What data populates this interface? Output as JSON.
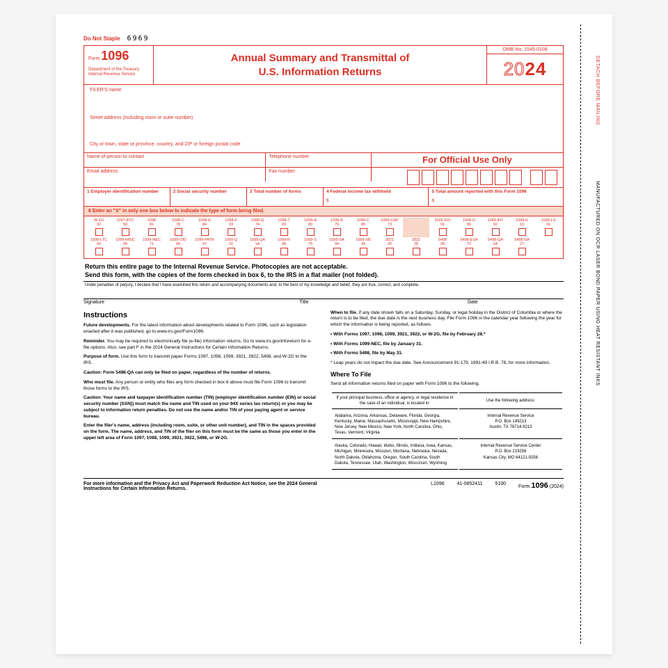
{
  "colors": {
    "red": "#d93025",
    "shade": "#f8d7c8",
    "black": "#000000",
    "page_bg": "#ffffff"
  },
  "top": {
    "nostaple": "Do Not Staple",
    "code": "6969"
  },
  "sidebar": {
    "detach": "DETACH BEFORE MAILING",
    "mfg": "MANUFACTURED ON OCR LASER BOND PAPER USING HEAT RESISTANT INKS"
  },
  "header": {
    "form_word": "Form",
    "form_num": "1096",
    "dept": "Department of the Treasury\nInternal Revenue Service",
    "title": "Annual Summary and Transmittal of\nU.S. Information Returns",
    "omb": "OMB No. 1545-0108",
    "year_outline": "20",
    "year_solid": "24"
  },
  "filer": {
    "name": "FILER'S name",
    "street": "Street address (including room or suite number)",
    "city": "City or town, state or province, country, and ZIP or foreign postal code"
  },
  "contact": {
    "person": "Name of person to contact",
    "phone": "Telephone number",
    "email": "Email address",
    "fax": "Fax number",
    "official": "For Official Use Only"
  },
  "row3": {
    "c1": "1 Employer identification number",
    "c2": "2 Social security number",
    "c3": "3 Total number of forms",
    "c4": "4 Federal income tax withheld",
    "c5": "5 Total amount reported with this Form 1096",
    "dollar": "$"
  },
  "box6": "6 Enter an \"X\" in only one box below to indicate the type of form being filed.",
  "checks": [
    {
      "t": "W-2G",
      "n": "32"
    },
    {
      "t": "1097-BTC",
      "n": "50"
    },
    {
      "t": "1098",
      "n": "81"
    },
    {
      "t": "1098-C",
      "n": "78"
    },
    {
      "t": "1098-E",
      "n": "84"
    },
    {
      "t": "1098-F",
      "n": "03"
    },
    {
      "t": "1098-Q",
      "n": "74"
    },
    {
      "t": "1098-T",
      "n": "83"
    },
    {
      "t": "1099-A",
      "n": "80"
    },
    {
      "t": "1099-B",
      "n": "79"
    },
    {
      "t": "1099-C",
      "n": "85"
    },
    {
      "t": "1099-CAP",
      "n": "73"
    },
    {
      "t": "",
      "n": "",
      "shade": true
    },
    {
      "t": "1099-DIV",
      "n": "91"
    },
    {
      "t": "1099-G",
      "n": "86"
    },
    {
      "t": "1099-INT",
      "n": "92"
    },
    {
      "t": "1099-K",
      "n": "10"
    },
    {
      "t": "1099-LS",
      "n": "16"
    },
    {
      "t": "1099-LTC",
      "n": "93"
    },
    {
      "t": "1099-MISC",
      "n": "95"
    },
    {
      "t": "1099-NEC",
      "n": "71"
    },
    {
      "t": "1099-OID",
      "n": "96"
    },
    {
      "t": "1099-PATR",
      "n": "97"
    },
    {
      "t": "1099-Q",
      "n": "31"
    },
    {
      "t": "1099-QA",
      "n": "1A"
    },
    {
      "t": "1099-R",
      "n": "98"
    },
    {
      "t": "1099-S",
      "n": "75"
    },
    {
      "t": "1099-SA",
      "n": "94"
    },
    {
      "t": "1099-SB",
      "n": "43"
    },
    {
      "t": "3921",
      "n": "25"
    },
    {
      "t": "3922",
      "n": "26"
    },
    {
      "t": "5498",
      "n": "28"
    },
    {
      "t": "5498-ESA",
      "n": "72"
    },
    {
      "t": "5498-QA",
      "n": "2A"
    },
    {
      "t": "5498-SA",
      "n": "27"
    }
  ],
  "returnText": "Return this entire page to the Internal Revenue Service. Photocopies are not acceptable.\nSend this form, with the copies of the form checked in box 6, to the IRS in a flat mailer (not folded).",
  "perjury": "Under penalties of perjury, I declare that I have examined this return and accompanying documents and, to the best of my knowledge and belief, they are true, correct, and complete.",
  "sig": {
    "a": "Signature",
    "b": "Title",
    "c": "Date"
  },
  "instr": {
    "heading": "Instructions",
    "p1b": "Future developments.",
    "p1": " For the latest information about developments related to Form 1096, such as legislation enacted after it was published, go to www.irs.gov/Form1096.",
    "p2b": "Reminder.",
    "p2": " You may be required to electronically file (e-file) information returns. Go to www.irs.gov/inforeturn for e-file options. Also, see part F in the 2024 General Instructions for Certain Information Returns.",
    "p3b": "Purpose of form.",
    "p3": " Use this form to transmit paper Forms 1097, 1098, 1099, 3921, 3922, 5498, and W-2G to the IRS.",
    "p4b": "Caution: Form 5498-QA can only be filed on paper, regardless of the number of returns.",
    "p5b": "Who must file.",
    "p5": " Any person or entity who files any form checked in box 6 above must file Form 1096 to transmit those forms to the IRS.",
    "p6b": "Caution: Your name and taxpayer identification number (TIN) (employer identification number (EIN) or social security number (SSN)) must match the name and TIN used on your 94X series tax return(s) or you may be subject to information return penalties. Do not use the name and/or TIN of your paying agent or service bureau.",
    "p7": "Enter the filer's name, address (including room, suite, or other unit number), and TIN in the spaces provided on the form. The name, address, and TIN of the filer on this form must be the same as those you enter in the upper left area of Form 1097, 1098, 1099, 3921, 3922, 5498, or W-2G.",
    "whenb": "When to file.",
    "when": " If any date shown falls on a Saturday, Sunday, or legal holiday in the District of Columbia or where the return is to be filed, the due date is the next business day. File Form 1096 in the calendar year following the year for which the information is being reported, as follows.",
    "b1": "• With Forms 1097, 1098, 1099, 3921, 3922, or W-2G, file by February 28.*",
    "b2": "• With Forms 1099-NEC, file by January 31.",
    "b3": "• With Forms 5498, file by May 31.",
    "leap": "* Leap years do not impact the due date. See Announcement 91-179, 1991-49 I.R.B. 78, for more information.",
    "whereh": "Where To File",
    "where": "Send all information returns filed on paper with Form 1096 to the following.",
    "th1": "If your principal business, office or agency, or legal residence in the case of an individual, is located in:",
    "th2": "Use the following address:",
    "states1": "Alabama, Arizona, Arkansas, Delaware, Florida, Georgia, Kentucky, Maine, Massachusetts, Mississippi, New Hampshire, New Jersey, New Mexico, New York, North Carolina, Ohio, Texas, Vermont, Virginia",
    "addr1": "Internal Revenue Service\nP.O. Box 149213\nAustin, TX 78714-9213",
    "states2": "Alaska, Colorado, Hawaii, Idaho, Illinois, Indiana, Iowa, Kansas, Michigan, Minnesota, Missouri, Montana, Nebraska, Nevada, North Dakota, Oklahoma, Oregon, South Carolina, South Dakota, Tennessee, Utah, Washington, Wisconsin, Wyoming",
    "addr2": "Internal Revenue Service Center\nP.O. Box 219256\nKansas City, MO 64121-9256"
  },
  "footer": {
    "left": "For more information and the Privacy Act and Paperwork Reduction Act Notice, see the 2024 General Instructions for Certain Information Returns.",
    "c1": "L1096",
    "c2": "41-0852411",
    "c3": "5100",
    "formword": "Form ",
    "formnum": "1096",
    "formyr": " (2024)"
  }
}
